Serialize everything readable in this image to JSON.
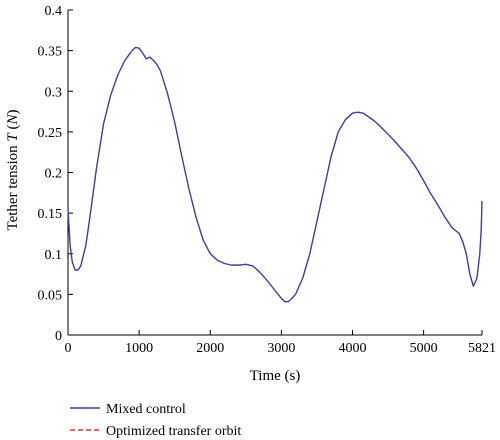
{
  "chart_data": {
    "type": "line",
    "xlabel": "Time (s)",
    "ylabel_prefix": "Tether tension ",
    "ylabel_var": "T",
    "ylabel_unit_open": " (",
    "ylabel_unit": "N",
    "ylabel_unit_close": ")",
    "xlim": [
      0,
      5821
    ],
    "ylim": [
      0,
      0.4
    ],
    "x_ticks": [
      0,
      1000,
      2000,
      3000,
      4000,
      5000,
      5821
    ],
    "x_tick_labels": [
      "0",
      "1000",
      "2000",
      "3000",
      "4000",
      "5000",
      "5821"
    ],
    "y_ticks": [
      0,
      0.05,
      0.1,
      0.15,
      0.2,
      0.25,
      0.3,
      0.35,
      0.4
    ],
    "y_tick_labels": [
      "0",
      "0.05",
      "0.1",
      "0.15",
      "0.2",
      "0.25",
      "0.3",
      "0.35",
      "0.4"
    ],
    "grid": false,
    "legend_position": "bottom-left",
    "series": [
      {
        "name": "Mixed control",
        "color": "#3a3fa3",
        "dash": "solid",
        "x": [
          0,
          30,
          60,
          100,
          140,
          180,
          250,
          300,
          400,
          500,
          600,
          700,
          800,
          900,
          950,
          1000,
          1050,
          1100,
          1150,
          1200,
          1250,
          1300,
          1400,
          1500,
          1600,
          1700,
          1800,
          1900,
          2000,
          2100,
          2200,
          2300,
          2400,
          2500,
          2600,
          2700,
          2800,
          2900,
          3000,
          3050,
          3100,
          3200,
          3300,
          3400,
          3500,
          3600,
          3700,
          3800,
          3900,
          4000,
          4050,
          4100,
          4150,
          4200,
          4300,
          4400,
          4500,
          4600,
          4700,
          4800,
          4900,
          5000,
          5100,
          5200,
          5300,
          5400,
          5500,
          5550,
          5600,
          5650,
          5700,
          5750,
          5790,
          5810,
          5821
        ],
        "y": [
          0.155,
          0.11,
          0.09,
          0.08,
          0.08,
          0.085,
          0.11,
          0.14,
          0.205,
          0.26,
          0.295,
          0.32,
          0.338,
          0.35,
          0.354,
          0.353,
          0.347,
          0.34,
          0.342,
          0.338,
          0.333,
          0.325,
          0.297,
          0.262,
          0.22,
          0.18,
          0.145,
          0.117,
          0.1,
          0.092,
          0.088,
          0.086,
          0.086,
          0.087,
          0.085,
          0.077,
          0.067,
          0.056,
          0.045,
          0.041,
          0.041,
          0.05,
          0.07,
          0.1,
          0.14,
          0.18,
          0.22,
          0.25,
          0.265,
          0.273,
          0.274,
          0.274,
          0.273,
          0.27,
          0.264,
          0.256,
          0.247,
          0.238,
          0.228,
          0.218,
          0.205,
          0.19,
          0.174,
          0.16,
          0.145,
          0.132,
          0.125,
          0.115,
          0.1,
          0.075,
          0.06,
          0.07,
          0.1,
          0.13,
          0.165
        ]
      },
      {
        "name": "Optimized transfer orbit",
        "color": "#e8372c",
        "dash": "dashed",
        "x": [],
        "y": []
      }
    ]
  }
}
